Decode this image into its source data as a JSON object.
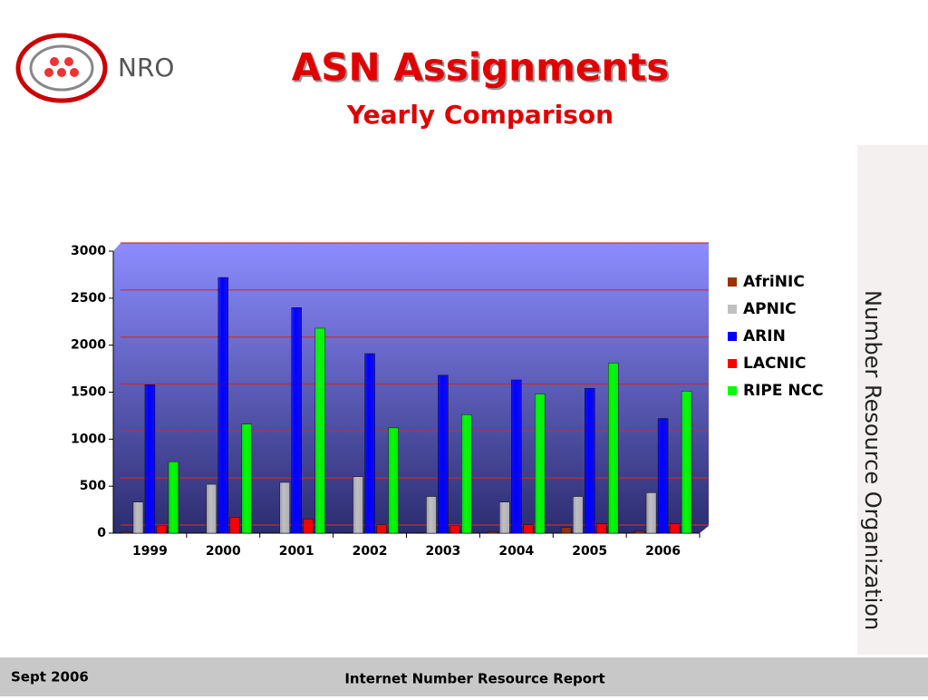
{
  "logo": {
    "text": "NRO"
  },
  "side_text": "Number Resource Organization",
  "footer": {
    "left": "Sept 2006",
    "center": "Internet Number Resource Report"
  },
  "chart_data": {
    "type": "bar",
    "title": "ASN Assignments",
    "subtitle": "Yearly Comparison",
    "categories": [
      "1999",
      "2000",
      "2001",
      "2002",
      "2003",
      "2004",
      "2005",
      "2006"
    ],
    "series": [
      {
        "name": "AfriNIC",
        "color": "#993300",
        "values": [
          10,
          5,
          5,
          5,
          5,
          15,
          60,
          20
        ]
      },
      {
        "name": "APNIC",
        "color": "#c0c0c0",
        "values": [
          330,
          520,
          540,
          600,
          390,
          330,
          390,
          430
        ]
      },
      {
        "name": "ARIN",
        "color": "#0000ff",
        "values": [
          1580,
          2720,
          2400,
          1910,
          1680,
          1630,
          1540,
          1220
        ]
      },
      {
        "name": "LACNIC",
        "color": "#ff0000",
        "values": [
          80,
          170,
          150,
          90,
          80,
          90,
          100,
          100
        ]
      },
      {
        "name": "RIPE NCC",
        "color": "#00ff00",
        "values": [
          760,
          1160,
          2180,
          1120,
          1260,
          1480,
          1810,
          1510
        ]
      }
    ],
    "ylim": [
      0,
      3000
    ],
    "yticks": [
      0,
      500,
      1000,
      1500,
      2000,
      2500,
      3000
    ],
    "grid": true,
    "legend": "right"
  }
}
